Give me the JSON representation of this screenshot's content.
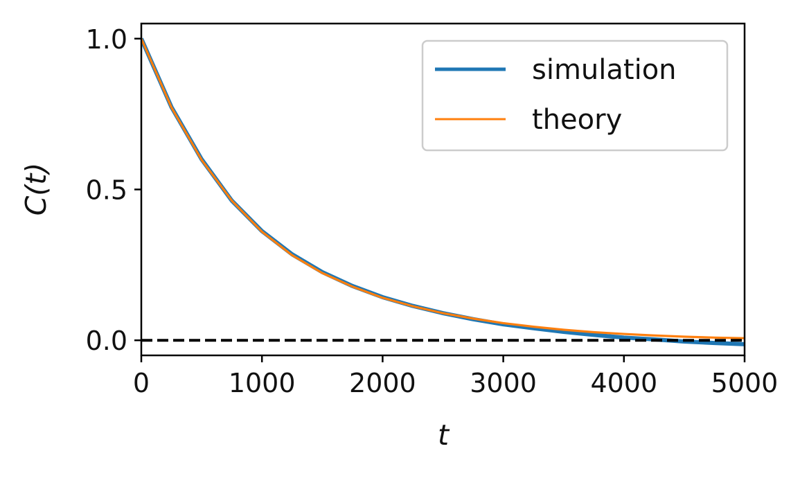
{
  "chart_data": {
    "type": "line",
    "title": "",
    "xlabel": "t",
    "ylabel": "C(t)",
    "xlim": [
      0,
      5000
    ],
    "ylim": [
      -0.05,
      1.05
    ],
    "xticks": [
      0,
      1000,
      2000,
      3000,
      4000,
      5000
    ],
    "xtick_labels": [
      "0",
      "1000",
      "2000",
      "3000",
      "4000",
      "5000"
    ],
    "yticks": [
      0.0,
      0.5,
      1.0
    ],
    "ytick_labels": [
      "0.0",
      "0.5",
      "1.0"
    ],
    "grid": false,
    "legend_position": "top-right",
    "reference_line": {
      "y": 0,
      "style": "dashed",
      "color": "#000000"
    },
    "series": [
      {
        "name": "simulation",
        "color": "#1f77b4",
        "x": [
          0,
          250,
          500,
          750,
          1000,
          1250,
          1500,
          1750,
          2000,
          2250,
          2500,
          2750,
          3000,
          3250,
          3500,
          3750,
          4000,
          4250,
          4500,
          4750,
          5000
        ],
        "y": [
          1.0,
          0.773,
          0.6,
          0.463,
          0.362,
          0.285,
          0.226,
          0.18,
          0.143,
          0.114,
          0.09,
          0.07,
          0.053,
          0.04,
          0.028,
          0.018,
          0.009,
          0.003,
          -0.004,
          -0.009,
          -0.013
        ]
      },
      {
        "name": "theory",
        "color": "#ff7f0e",
        "x": [
          0,
          250,
          500,
          750,
          1000,
          1250,
          1500,
          1750,
          2000,
          2250,
          2500,
          2750,
          3000,
          3250,
          3500,
          3750,
          4000,
          4250,
          4500,
          4750,
          5000
        ],
        "y": [
          1.0,
          0.772,
          0.598,
          0.463,
          0.36,
          0.282,
          0.223,
          0.178,
          0.141,
          0.113,
          0.09,
          0.072,
          0.057,
          0.045,
          0.035,
          0.027,
          0.021,
          0.016,
          0.012,
          0.009,
          0.007
        ]
      }
    ]
  }
}
